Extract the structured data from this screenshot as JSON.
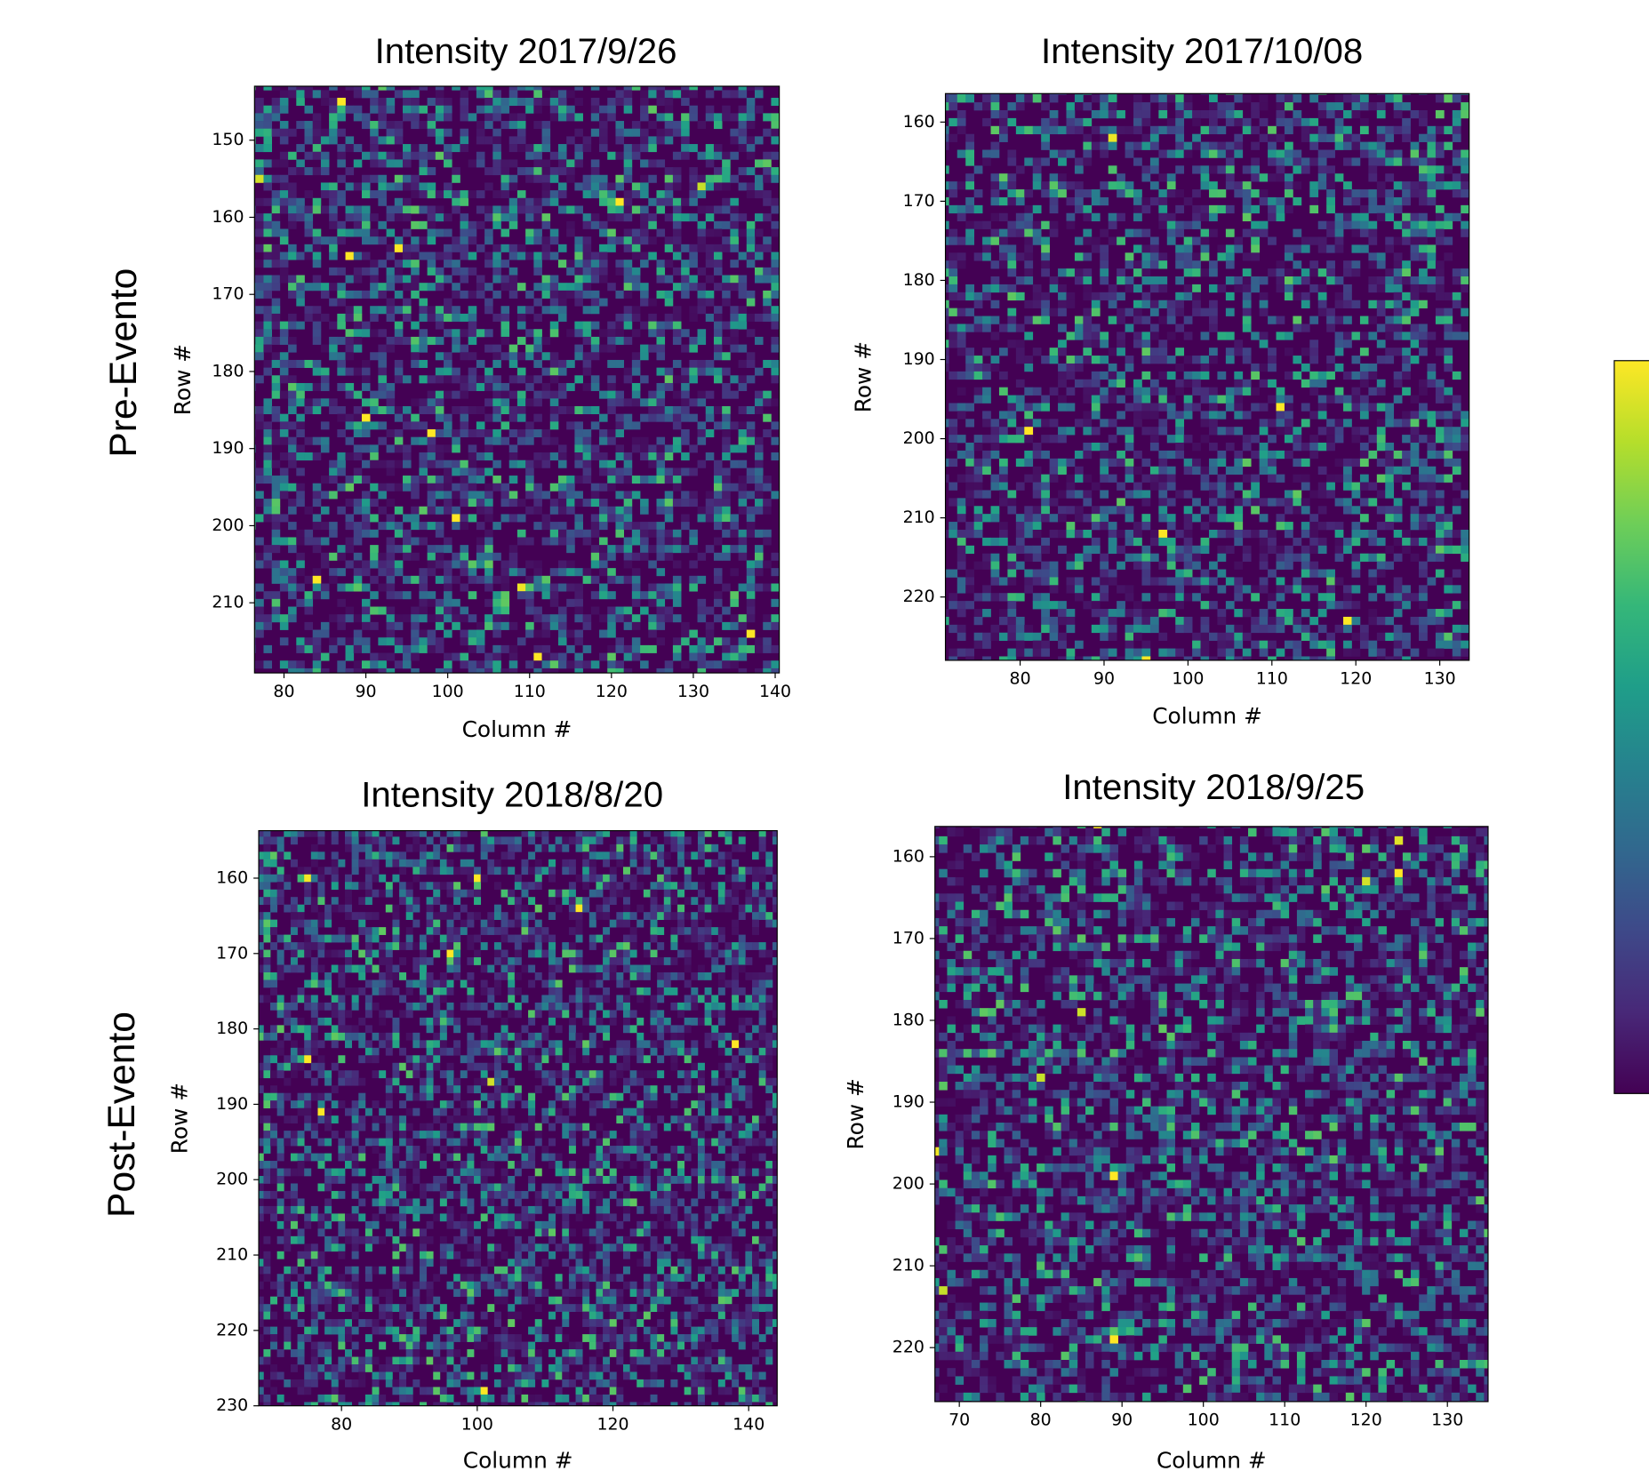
{
  "row_labels": [
    "Pre-Evento",
    "Post-Evento"
  ],
  "colorbar": {
    "colors": [
      "#440154",
      "#482878",
      "#3e4989",
      "#31688e",
      "#26828e",
      "#1f9e89",
      "#35b779",
      "#6ece58",
      "#b5de2b",
      "#fde725"
    ]
  },
  "chart_data": [
    {
      "type": "heatmap",
      "title": "Intensity 2017/9/26",
      "xlabel": "Column #",
      "ylabel": "Row #",
      "xlim": [
        76.4,
        140.5
      ],
      "ylim": [
        143,
        219.1
      ],
      "xticks": [
        80,
        90,
        100,
        110,
        120,
        130,
        140
      ],
      "yticks": [
        150,
        160,
        170,
        180,
        190,
        200,
        210
      ]
    },
    {
      "type": "heatmap",
      "title": "Intensity 2017/10/08",
      "xlabel": "Column #",
      "ylabel": "Row #",
      "xlim": [
        71.1,
        133.5
      ],
      "ylim": [
        156.4,
        228
      ],
      "xticks": [
        80,
        90,
        100,
        110,
        120,
        130
      ],
      "yticks": [
        160,
        170,
        180,
        190,
        200,
        210,
        220
      ]
    },
    {
      "type": "heatmap",
      "title": "Intensity 2018/8/20",
      "xlabel": "Column #",
      "ylabel": "Row #",
      "xlim": [
        67.8,
        144.2
      ],
      "ylim": [
        153.7,
        230
      ],
      "xticks": [
        80,
        100,
        120,
        140
      ],
      "yticks": [
        160,
        170,
        180,
        190,
        200,
        210,
        220,
        230
      ]
    },
    {
      "type": "heatmap",
      "title": "Intensity 2018/9/25",
      "xlabel": "Column #",
      "ylabel": "Row #",
      "xlim": [
        67,
        135
      ],
      "ylim": [
        156.3,
        226.6
      ],
      "xticks": [
        70,
        80,
        90,
        100,
        110,
        120,
        130
      ],
      "yticks": [
        160,
        170,
        180,
        190,
        200,
        210,
        220
      ]
    }
  ]
}
